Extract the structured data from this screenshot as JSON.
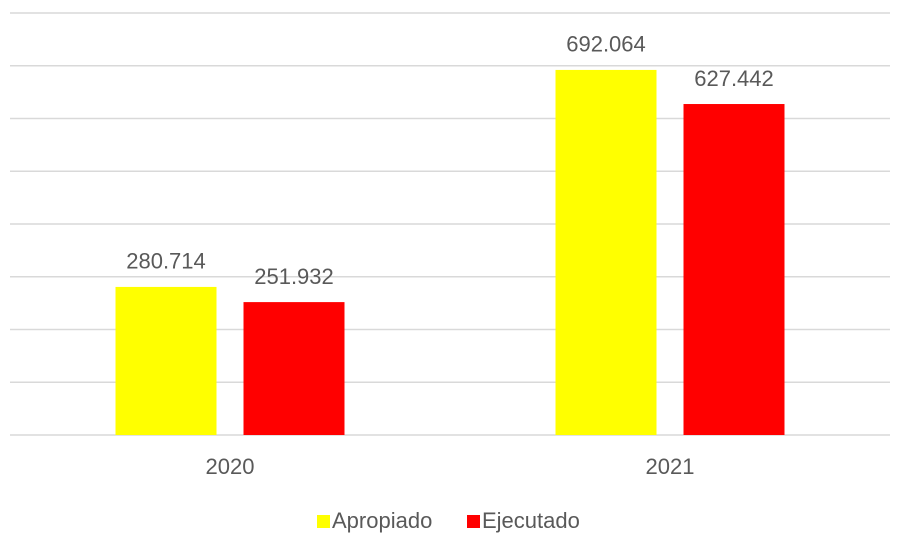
{
  "chart_data": {
    "type": "bar",
    "categories": [
      "2020",
      "2021"
    ],
    "series": [
      {
        "name": "Apropiado",
        "color": "#ffff00",
        "values": [
          280714,
          692064
        ],
        "value_labels": [
          "280.714",
          "692.064"
        ]
      },
      {
        "name": "Ejecutado",
        "color": "#ff0000",
        "values": [
          251932,
          627442
        ],
        "value_labels": [
          "251.932",
          "627.442"
        ]
      }
    ],
    "ylim": [
      0,
      800000
    ],
    "yticks": [
      0,
      100000,
      200000,
      300000,
      400000,
      500000,
      600000,
      700000,
      800000
    ],
    "grid": true,
    "legend": "bottom"
  }
}
